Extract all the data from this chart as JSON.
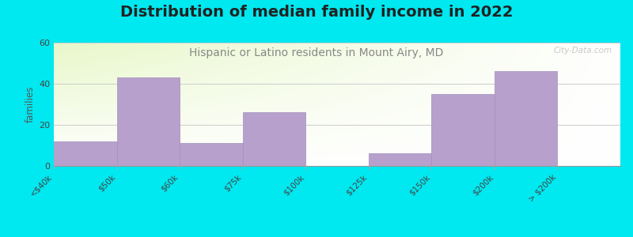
{
  "title": "Distribution of median family income in 2022",
  "subtitle": "Hispanic or Latino residents in Mount Airy, MD",
  "bar_heights": [
    12,
    43,
    11,
    26,
    0,
    6,
    35,
    46,
    0
  ],
  "bar_edges": [
    0,
    1,
    2,
    3,
    4,
    5,
    6,
    7,
    8,
    9
  ],
  "x_tick_labels": [
    "<$40k",
    "$50k",
    "$60k",
    "$75k",
    "$100k",
    "$125k",
    "$150k",
    "$200k",
    "> $200k"
  ],
  "bar_color": "#b8a0cc",
  "bar_edge_color": "#a090be",
  "ylabel": "families",
  "ylim": [
    0,
    60
  ],
  "yticks": [
    0,
    20,
    40,
    60
  ],
  "background_outer": "#00e8f0",
  "background_plot_topleft": "#d8edd8",
  "background_plot_right": "#f8f8f0",
  "title_fontsize": 14,
  "subtitle_fontsize": 10,
  "subtitle_color": "#888888",
  "watermark": "City-Data.com",
  "grid_color": "#cccccc",
  "title_color": "#222222"
}
